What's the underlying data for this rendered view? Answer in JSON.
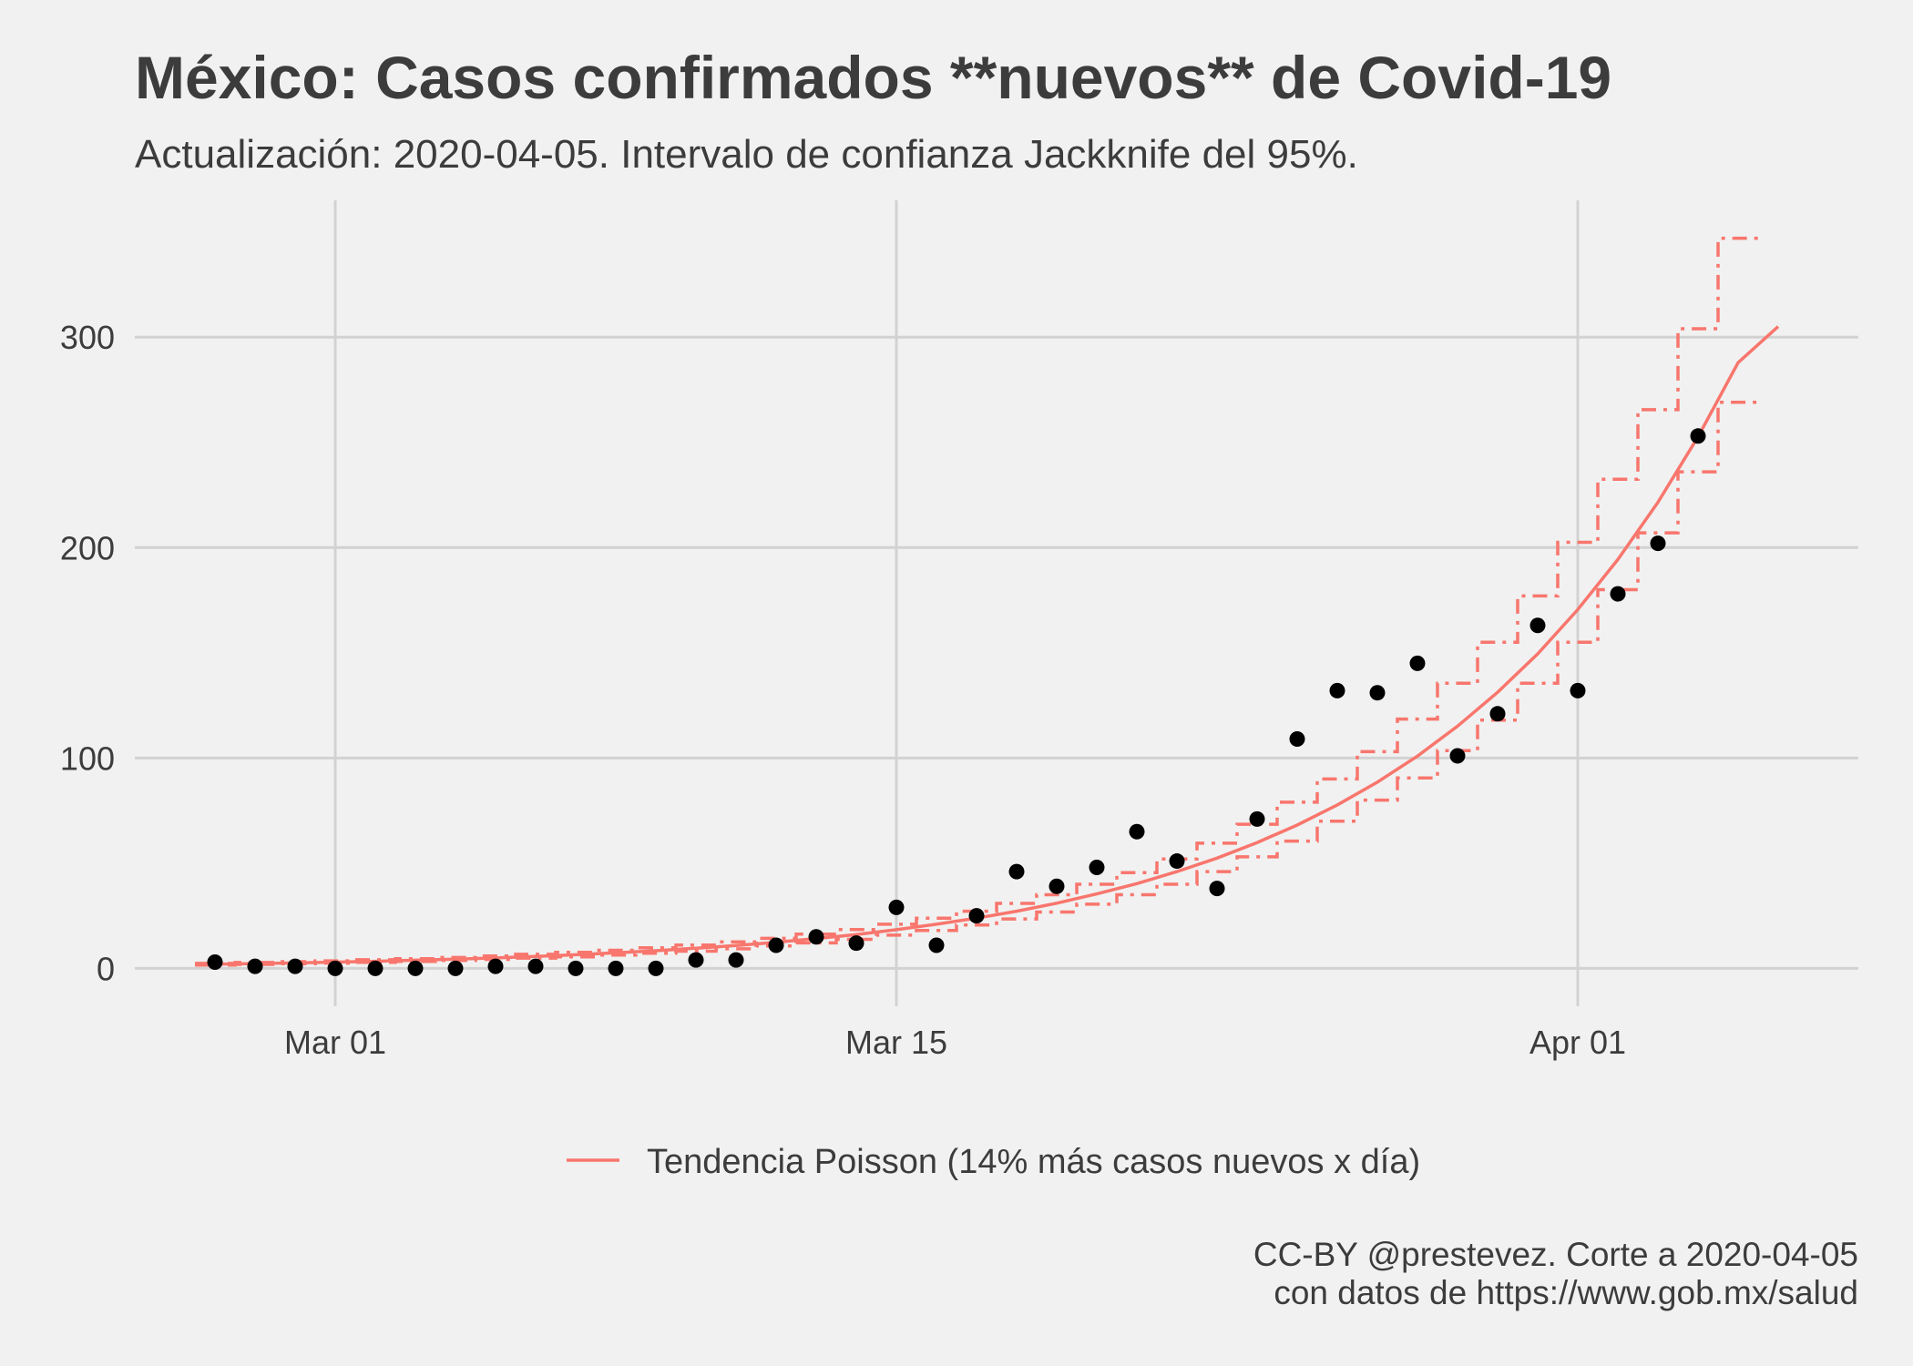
{
  "chart_data": {
    "type": "scatter",
    "title": "México: Casos confirmados **nuevos** de Covid-19",
    "subtitle": "Actualización: 2020-04-05. Intervalo de confianza Jackknife del 95%.",
    "caption_line1": "CC-BY @prestevez. Corte a 2020-04-05",
    "caption_line2": "con datos de https://www.gob.mx/salud",
    "xlabel": "",
    "ylabel": "",
    "x_is_date": true,
    "xlim": [
      "2020-02-25",
      "2020-04-08"
    ],
    "ylim": [
      -18,
      365
    ],
    "x_ticks": [
      {
        "date": "2020-03-01",
        "label": "Mar 01"
      },
      {
        "date": "2020-03-15",
        "label": "Mar 15"
      },
      {
        "date": "2020-04-01",
        "label": "Apr 01"
      }
    ],
    "y_ticks": [
      {
        "value": 0,
        "label": "0"
      },
      {
        "value": 100,
        "label": "100"
      },
      {
        "value": 200,
        "label": "200"
      },
      {
        "value": 300,
        "label": "300"
      }
    ],
    "grid": true,
    "legend_position": "bottom",
    "legend_label": "Tendencia Poisson (14% más casos nuevos x día)",
    "colors": {
      "points": "#000000",
      "trend": "#f8766d",
      "grid": "#d2d2d2",
      "background": "#f1f1f1"
    },
    "series": [
      {
        "type": "scatter",
        "x": [
          "2020-02-27",
          "2020-02-28",
          "2020-02-29",
          "2020-03-01",
          "2020-03-02",
          "2020-03-03",
          "2020-03-04",
          "2020-03-05",
          "2020-03-06",
          "2020-03-07",
          "2020-03-08",
          "2020-03-09",
          "2020-03-10",
          "2020-03-11",
          "2020-03-12",
          "2020-03-13",
          "2020-03-14",
          "2020-03-15",
          "2020-03-16",
          "2020-03-17",
          "2020-03-18",
          "2020-03-19",
          "2020-03-20",
          "2020-03-21",
          "2020-03-22",
          "2020-03-23",
          "2020-03-24",
          "2020-03-25",
          "2020-03-26",
          "2020-03-27",
          "2020-03-28",
          "2020-03-29",
          "2020-03-30",
          "2020-03-31",
          "2020-04-01",
          "2020-04-02",
          "2020-04-03",
          "2020-04-04",
          "2020-04-05"
        ],
        "values": [
          3,
          1,
          1,
          0,
          0,
          0,
          0,
          1,
          1,
          0,
          0,
          0,
          4,
          4,
          11,
          15,
          12,
          29,
          11,
          25,
          46,
          39,
          48,
          65,
          51,
          38,
          71,
          109,
          132,
          131,
          145,
          101,
          121,
          163,
          132,
          178,
          202,
          253,
          null
        ]
      },
      {
        "type": "line",
        "name": "Tendencia Poisson (14% más casos nuevos x día)",
        "x": [
          "2020-02-27",
          "2020-02-28",
          "2020-02-29",
          "2020-03-01",
          "2020-03-02",
          "2020-03-03",
          "2020-03-04",
          "2020-03-05",
          "2020-03-06",
          "2020-03-07",
          "2020-03-08",
          "2020-03-09",
          "2020-03-10",
          "2020-03-11",
          "2020-03-12",
          "2020-03-13",
          "2020-03-14",
          "2020-03-15",
          "2020-03-16",
          "2020-03-17",
          "2020-03-18",
          "2020-03-19",
          "2020-03-20",
          "2020-03-21",
          "2020-03-22",
          "2020-03-23",
          "2020-03-24",
          "2020-03-25",
          "2020-03-26",
          "2020-03-27",
          "2020-03-28",
          "2020-03-29",
          "2020-03-30",
          "2020-03-31",
          "2020-04-01",
          "2020-04-02",
          "2020-04-03",
          "2020-04-04",
          "2020-04-05",
          "2020-04-06"
        ],
        "values": [
          2.0,
          2.3,
          2.6,
          3.0,
          3.4,
          3.9,
          4.4,
          5.0,
          5.7,
          6.5,
          7.4,
          8.4,
          9.6,
          10.9,
          12.4,
          14.2,
          16.1,
          18.4,
          21.0,
          23.9,
          27.2,
          31.0,
          35.4,
          40.3,
          46.0,
          52.4,
          59.8,
          68.1,
          77.7,
          88.5,
          100.9,
          115.1,
          131.2,
          149.5,
          170.5,
          194.3,
          221.5,
          252.6,
          287.9,
          305.0
        ]
      },
      {
        "type": "step",
        "name": "upper",
        "x": [
          "2020-02-27",
          "2020-02-28",
          "2020-02-29",
          "2020-03-01",
          "2020-03-02",
          "2020-03-03",
          "2020-03-04",
          "2020-03-05",
          "2020-03-06",
          "2020-03-07",
          "2020-03-08",
          "2020-03-09",
          "2020-03-10",
          "2020-03-11",
          "2020-03-12",
          "2020-03-13",
          "2020-03-14",
          "2020-03-15",
          "2020-03-16",
          "2020-03-17",
          "2020-03-18",
          "2020-03-19",
          "2020-03-20",
          "2020-03-21",
          "2020-03-22",
          "2020-03-23",
          "2020-03-24",
          "2020-03-25",
          "2020-03-26",
          "2020-03-27",
          "2020-03-28",
          "2020-03-29",
          "2020-03-30",
          "2020-03-31",
          "2020-04-01",
          "2020-04-02",
          "2020-04-03",
          "2020-04-04",
          "2020-04-05"
        ],
        "values": [
          2.4,
          2.8,
          3.2,
          3.6,
          4.1,
          4.6,
          5.2,
          5.9,
          6.7,
          7.6,
          8.6,
          9.8,
          11.1,
          12.6,
          14.3,
          16.3,
          18.5,
          21.0,
          23.9,
          27.2,
          30.9,
          35.0,
          40.0,
          45.5,
          52.0,
          59.5,
          68.5,
          79.0,
          90.0,
          103.0,
          118.5,
          135.5,
          155.0,
          177.0,
          202.5,
          232.5,
          265.5,
          304.0,
          347.0
        ]
      },
      {
        "type": "step",
        "name": "lower",
        "x": [
          "2020-02-27",
          "2020-02-28",
          "2020-02-29",
          "2020-03-01",
          "2020-03-02",
          "2020-03-03",
          "2020-03-04",
          "2020-03-05",
          "2020-03-06",
          "2020-03-07",
          "2020-03-08",
          "2020-03-09",
          "2020-03-10",
          "2020-03-11",
          "2020-03-12",
          "2020-03-13",
          "2020-03-14",
          "2020-03-15",
          "2020-03-16",
          "2020-03-17",
          "2020-03-18",
          "2020-03-19",
          "2020-03-20",
          "2020-03-21",
          "2020-03-22",
          "2020-03-23",
          "2020-03-24",
          "2020-03-25",
          "2020-03-26",
          "2020-03-27",
          "2020-03-28",
          "2020-03-29",
          "2020-03-30",
          "2020-03-31",
          "2020-04-01",
          "2020-04-02",
          "2020-04-03",
          "2020-04-04",
          "2020-04-05"
        ],
        "values": [
          1.6,
          1.9,
          2.2,
          2.5,
          2.9,
          3.3,
          3.8,
          4.3,
          4.9,
          5.5,
          6.3,
          7.2,
          8.2,
          9.3,
          10.7,
          12.1,
          13.8,
          15.8,
          18.0,
          20.6,
          23.5,
          26.8,
          30.5,
          35.0,
          40.0,
          46.0,
          53.0,
          60.5,
          70.0,
          80.0,
          90.5,
          103.5,
          118.0,
          135.5,
          155.0,
          180.0,
          207.0,
          236.0,
          269.0
        ]
      }
    ]
  }
}
